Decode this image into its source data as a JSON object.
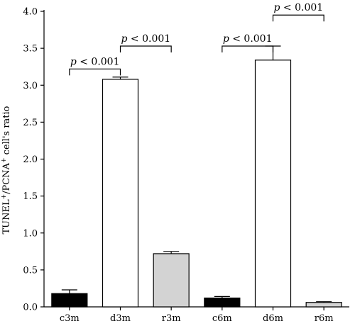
{
  "chart_data": {
    "type": "bar",
    "title": "",
    "xlabel": "",
    "ylabel_parts": [
      "TUNEL",
      "+",
      "/PCNA",
      "+",
      " cell's ratio"
    ],
    "ylim": [
      0,
      4.0
    ],
    "yticks": [
      "0.0",
      "0.5",
      "1.0",
      "1.5",
      "2.0",
      "2.5",
      "3.0",
      "3.5",
      "4.0"
    ],
    "categories": [
      "c3m",
      "d3m",
      "r3m",
      "c6m",
      "d6m",
      "r6m"
    ],
    "values": [
      0.18,
      3.08,
      0.72,
      0.12,
      3.34,
      0.06
    ],
    "errors": [
      0.05,
      0.03,
      0.03,
      0.02,
      0.19,
      0.01
    ],
    "bar_colors": [
      "#000000",
      "#ffffff",
      "#d3d3d3",
      "#000000",
      "#ffffff",
      "#d3d3d3"
    ],
    "significance": [
      {
        "from": 0,
        "to": 1,
        "y": 3.22,
        "p_symbol": "p",
        "rest": " < 0.001"
      },
      {
        "from": 1,
        "to": 2,
        "y": 3.53,
        "p_symbol": "p",
        "rest": " < 0.001"
      },
      {
        "from": 3,
        "to": 4,
        "y": 3.53,
        "p_symbol": "p",
        "rest": " < 0.001"
      },
      {
        "from": 4,
        "to": 5,
        "y": 3.95,
        "p_symbol": "p",
        "rest": " < 0.001"
      }
    ]
  }
}
